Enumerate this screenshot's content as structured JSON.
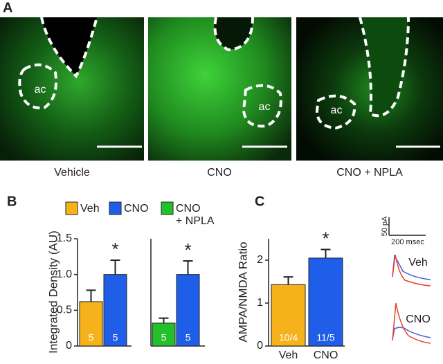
{
  "panels": {
    "a": "A",
    "b": "B",
    "c": "C"
  },
  "images": [
    {
      "caption": "Vehicle",
      "region_label": "ac"
    },
    {
      "caption": "CNO",
      "region_label": "ac"
    },
    {
      "caption": "CNO + NPLA",
      "region_label": "ac"
    }
  ],
  "legend": [
    {
      "name": "Veh",
      "color": "#f6b21b"
    },
    {
      "name": "CNO",
      "color": "#1e5ee8"
    },
    {
      "name": "CNO + NPLA",
      "color": "#22c02a"
    }
  ],
  "chart_data": [
    {
      "type": "bar",
      "y_label": "Integrated Density (AU)",
      "values": [
        0.62,
        1.0
      ],
      "errors": [
        0.16,
        0.2
      ],
      "n_labels": [
        "5",
        "5"
      ],
      "colors": [
        "#f6b21b",
        "#1e5ee8"
      ],
      "ylim": [
        0,
        1.5
      ],
      "yticks": [
        0,
        0.5,
        {
          "value": 1,
          "label": "1.0"
        },
        1.5
      ],
      "annotations": [
        {
          "text": "*",
          "index": 1
        }
      ]
    },
    {
      "type": "bar",
      "values": [
        0.32,
        1.0
      ],
      "errors": [
        0.07,
        0.19
      ],
      "n_labels": [
        "5",
        "5"
      ],
      "colors": [
        "#22c02a",
        "#1e5ee8"
      ],
      "ylim": [
        0,
        1.5
      ],
      "annotations": [
        {
          "text": "*",
          "index": 1
        }
      ]
    },
    {
      "type": "bar",
      "y_label": "AMPA/NMDA Ratio",
      "categories": [
        "Veh",
        "CNO"
      ],
      "values": [
        1.43,
        2.05
      ],
      "errors": [
        0.18,
        0.2
      ],
      "n_labels": [
        "10/4",
        "11/5"
      ],
      "colors": [
        "#f6b21b",
        "#1e5ee8"
      ],
      "ylim": [
        0,
        2.5
      ],
      "yticks": [
        0,
        1,
        2
      ],
      "annotations": [
        {
          "text": "*",
          "index": 1
        }
      ]
    }
  ],
  "traces": {
    "scale_y": "50 pA",
    "scale_x": "200 msec",
    "labels": [
      "Veh",
      "CNO"
    ]
  }
}
